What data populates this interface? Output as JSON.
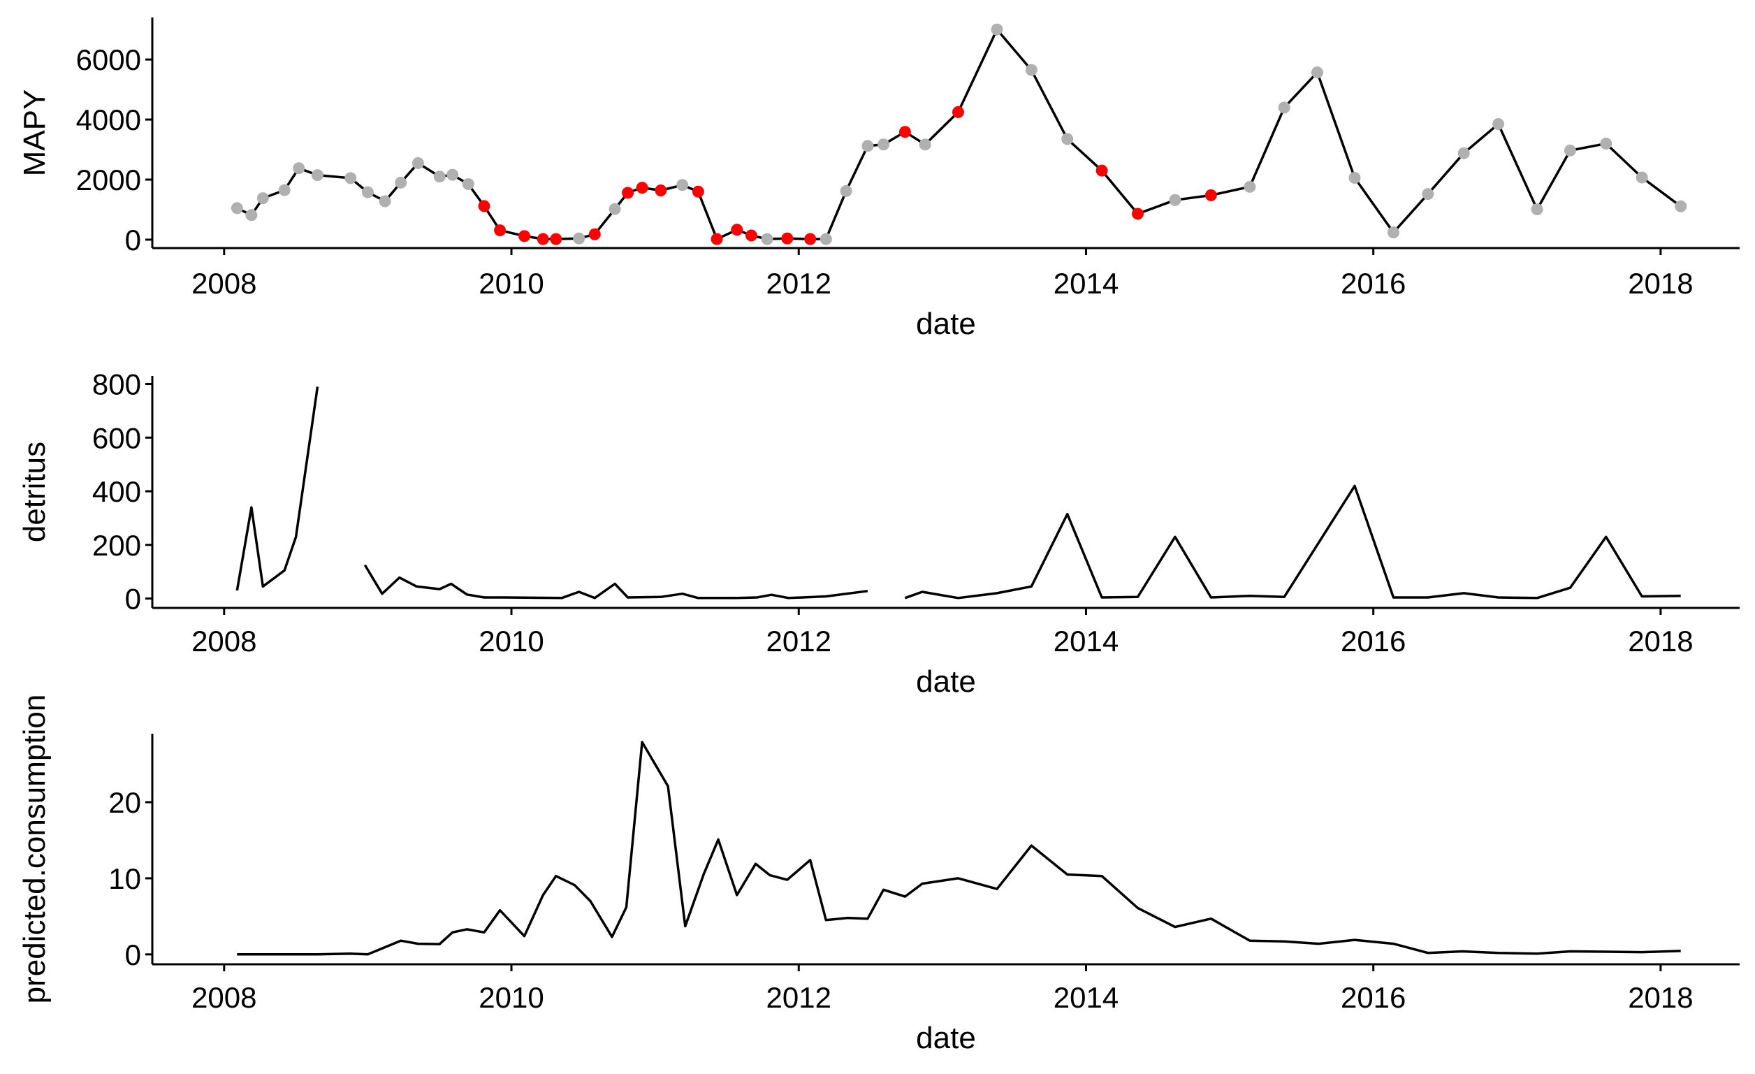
{
  "chart_data": [
    {
      "type": "line",
      "xlabel": "date",
      "ylabel": "MAPY",
      "xlim": [
        2007.5,
        2018.55
      ],
      "ylim": [
        -280,
        7400
      ],
      "xticks": [
        2008,
        2010,
        2012,
        2014,
        2016,
        2018
      ],
      "xtick_labels": [
        "2008",
        "2010",
        "2012",
        "2014",
        "2016",
        "2018"
      ],
      "yticks": [
        0,
        2000,
        4000,
        6000
      ],
      "ytick_labels": [
        "0",
        "2000",
        "4000",
        "6000"
      ],
      "grid": false,
      "legend": "none",
      "point_colors": {
        "grey": "#b0b0b0",
        "red": "#ff0000"
      },
      "line_color": "#000000",
      "points": [
        {
          "x": 2008.09,
          "y": 1050,
          "c": "grey"
        },
        {
          "x": 2008.19,
          "y": 820,
          "c": "grey"
        },
        {
          "x": 2008.27,
          "y": 1380,
          "c": "grey"
        },
        {
          "x": 2008.42,
          "y": 1650,
          "c": "grey"
        },
        {
          "x": 2008.52,
          "y": 2380,
          "c": "grey"
        },
        {
          "x": 2008.65,
          "y": 2150,
          "c": "grey"
        },
        {
          "x": 2008.88,
          "y": 2050,
          "c": "grey"
        },
        {
          "x": 2009.0,
          "y": 1580,
          "c": "grey"
        },
        {
          "x": 2009.12,
          "y": 1280,
          "c": "grey"
        },
        {
          "x": 2009.23,
          "y": 1900,
          "c": "grey"
        },
        {
          "x": 2009.35,
          "y": 2550,
          "c": "grey"
        },
        {
          "x": 2009.5,
          "y": 2100,
          "c": "grey"
        },
        {
          "x": 2009.59,
          "y": 2160,
          "c": "grey"
        },
        {
          "x": 2009.7,
          "y": 1850,
          "c": "grey"
        },
        {
          "x": 2009.81,
          "y": 1120,
          "c": "red"
        },
        {
          "x": 2009.92,
          "y": 310,
          "c": "red"
        },
        {
          "x": 2010.09,
          "y": 120,
          "c": "red"
        },
        {
          "x": 2010.22,
          "y": 20,
          "c": "red"
        },
        {
          "x": 2010.31,
          "y": 20,
          "c": "red"
        },
        {
          "x": 2010.47,
          "y": 40,
          "c": "grey"
        },
        {
          "x": 2010.58,
          "y": 180,
          "c": "red"
        },
        {
          "x": 2010.72,
          "y": 1020,
          "c": "grey"
        },
        {
          "x": 2010.81,
          "y": 1560,
          "c": "red"
        },
        {
          "x": 2010.91,
          "y": 1730,
          "c": "red"
        },
        {
          "x": 2011.04,
          "y": 1640,
          "c": "red"
        },
        {
          "x": 2011.19,
          "y": 1820,
          "c": "grey"
        },
        {
          "x": 2011.3,
          "y": 1600,
          "c": "red"
        },
        {
          "x": 2011.43,
          "y": 20,
          "c": "red"
        },
        {
          "x": 2011.57,
          "y": 330,
          "c": "red"
        },
        {
          "x": 2011.67,
          "y": 140,
          "c": "red"
        },
        {
          "x": 2011.78,
          "y": 20,
          "c": "grey"
        },
        {
          "x": 2011.92,
          "y": 40,
          "c": "red"
        },
        {
          "x": 2012.08,
          "y": 20,
          "c": "red"
        },
        {
          "x": 2012.19,
          "y": 20,
          "c": "grey"
        },
        {
          "x": 2012.33,
          "y": 1620,
          "c": "grey"
        },
        {
          "x": 2012.48,
          "y": 3120,
          "c": "grey"
        },
        {
          "x": 2012.59,
          "y": 3170,
          "c": "grey"
        },
        {
          "x": 2012.74,
          "y": 3590,
          "c": "red"
        },
        {
          "x": 2012.88,
          "y": 3170,
          "c": "grey"
        },
        {
          "x": 2013.11,
          "y": 4250,
          "c": "red"
        },
        {
          "x": 2013.38,
          "y": 7000,
          "c": "grey"
        },
        {
          "x": 2013.62,
          "y": 5650,
          "c": "grey"
        },
        {
          "x": 2013.87,
          "y": 3350,
          "c": "grey"
        },
        {
          "x": 2014.11,
          "y": 2300,
          "c": "red"
        },
        {
          "x": 2014.36,
          "y": 860,
          "c": "red"
        },
        {
          "x": 2014.62,
          "y": 1320,
          "c": "grey"
        },
        {
          "x": 2014.87,
          "y": 1480,
          "c": "red"
        },
        {
          "x": 2015.14,
          "y": 1760,
          "c": "grey"
        },
        {
          "x": 2015.38,
          "y": 4400,
          "c": "grey"
        },
        {
          "x": 2015.61,
          "y": 5570,
          "c": "grey"
        },
        {
          "x": 2015.87,
          "y": 2060,
          "c": "grey"
        },
        {
          "x": 2016.14,
          "y": 240,
          "c": "grey"
        },
        {
          "x": 2016.38,
          "y": 1520,
          "c": "grey"
        },
        {
          "x": 2016.63,
          "y": 2880,
          "c": "grey"
        },
        {
          "x": 2016.87,
          "y": 3850,
          "c": "grey"
        },
        {
          "x": 2017.14,
          "y": 1010,
          "c": "grey"
        },
        {
          "x": 2017.37,
          "y": 2970,
          "c": "grey"
        },
        {
          "x": 2017.62,
          "y": 3200,
          "c": "grey"
        },
        {
          "x": 2017.87,
          "y": 2070,
          "c": "grey"
        },
        {
          "x": 2018.14,
          "y": 1110,
          "c": "grey"
        }
      ]
    },
    {
      "type": "line",
      "xlabel": "date",
      "ylabel": "detritus",
      "xlim": [
        2007.5,
        2018.55
      ],
      "ylim": [
        -35,
        830
      ],
      "xticks": [
        2008,
        2010,
        2012,
        2014,
        2016,
        2018
      ],
      "xtick_labels": [
        "2008",
        "2010",
        "2012",
        "2014",
        "2016",
        "2018"
      ],
      "yticks": [
        0,
        200,
        400,
        600,
        800
      ],
      "ytick_labels": [
        "0",
        "200",
        "400",
        "600",
        "800"
      ],
      "grid": false,
      "legend": "none",
      "line_color": "#000000",
      "segments": [
        [
          [
            2008.09,
            30
          ],
          [
            2008.19,
            340
          ],
          [
            2008.27,
            45
          ],
          [
            2008.42,
            105
          ],
          [
            2008.5,
            230
          ],
          [
            2008.65,
            790
          ]
        ],
        [
          [
            2008.98,
            125
          ],
          [
            2009.1,
            18
          ],
          [
            2009.22,
            78
          ],
          [
            2009.34,
            45
          ],
          [
            2009.5,
            35
          ],
          [
            2009.58,
            55
          ],
          [
            2009.69,
            15
          ],
          [
            2009.81,
            4
          ],
          [
            2009.95,
            4
          ],
          [
            2010.35,
            2
          ],
          [
            2010.47,
            25
          ],
          [
            2010.58,
            2
          ],
          [
            2010.72,
            55
          ],
          [
            2010.81,
            4
          ],
          [
            2011.04,
            6
          ],
          [
            2011.19,
            18
          ],
          [
            2011.3,
            2
          ],
          [
            2011.57,
            2
          ],
          [
            2011.71,
            4
          ],
          [
            2011.81,
            14
          ],
          [
            2011.93,
            2
          ],
          [
            2012.19,
            8
          ],
          [
            2012.48,
            28
          ]
        ],
        [
          [
            2012.74,
            2
          ],
          [
            2012.86,
            25
          ],
          [
            2013.11,
            2
          ],
          [
            2013.38,
            20
          ],
          [
            2013.62,
            45
          ],
          [
            2013.87,
            315
          ],
          [
            2014.11,
            4
          ],
          [
            2014.36,
            6
          ],
          [
            2014.62,
            230
          ],
          [
            2014.87,
            4
          ],
          [
            2015.14,
            10
          ],
          [
            2015.38,
            6
          ],
          [
            2015.87,
            420
          ],
          [
            2016.14,
            4
          ],
          [
            2016.38,
            4
          ],
          [
            2016.63,
            20
          ],
          [
            2016.87,
            4
          ],
          [
            2017.14,
            2
          ],
          [
            2017.37,
            40
          ],
          [
            2017.62,
            230
          ],
          [
            2017.87,
            8
          ],
          [
            2018.14,
            10
          ]
        ]
      ]
    },
    {
      "type": "line",
      "xlabel": "date",
      "ylabel": "predicted.consumption",
      "xlim": [
        2007.5,
        2018.55
      ],
      "ylim": [
        -1.3,
        29
      ],
      "xticks": [
        2008,
        2010,
        2012,
        2014,
        2016,
        2018
      ],
      "xtick_labels": [
        "2008",
        "2010",
        "2012",
        "2014",
        "2016",
        "2018"
      ],
      "yticks": [
        0,
        10,
        20
      ],
      "ytick_labels": [
        "0",
        "10",
        "20"
      ],
      "grid": false,
      "legend": "none",
      "line_color": "#000000",
      "segments": [
        [
          [
            2008.09,
            0.0
          ],
          [
            2008.65,
            0.0
          ],
          [
            2008.88,
            0.1
          ],
          [
            2009.0,
            0.0
          ],
          [
            2009.23,
            1.8
          ],
          [
            2009.35,
            1.4
          ],
          [
            2009.5,
            1.35
          ],
          [
            2009.59,
            2.9
          ],
          [
            2009.69,
            3.3
          ],
          [
            2009.81,
            2.9
          ],
          [
            2009.92,
            5.8
          ],
          [
            2010.09,
            2.4
          ],
          [
            2010.22,
            7.8
          ],
          [
            2010.31,
            10.3
          ],
          [
            2010.44,
            9.1
          ],
          [
            2010.55,
            7.0
          ],
          [
            2010.7,
            2.3
          ],
          [
            2010.8,
            6.2
          ],
          [
            2010.91,
            27.9
          ],
          [
            2011.09,
            22.1
          ],
          [
            2011.21,
            3.7
          ],
          [
            2011.34,
            10.6
          ],
          [
            2011.44,
            15.1
          ],
          [
            2011.57,
            7.8
          ],
          [
            2011.7,
            11.9
          ],
          [
            2011.8,
            10.4
          ],
          [
            2011.92,
            9.8
          ],
          [
            2012.08,
            12.4
          ],
          [
            2012.19,
            4.5
          ],
          [
            2012.34,
            4.8
          ],
          [
            2012.48,
            4.7
          ],
          [
            2012.59,
            8.5
          ],
          [
            2012.74,
            7.6
          ],
          [
            2012.86,
            9.3
          ],
          [
            2013.11,
            10.0
          ],
          [
            2013.38,
            8.6
          ],
          [
            2013.62,
            14.3
          ],
          [
            2013.87,
            10.5
          ],
          [
            2014.11,
            10.3
          ],
          [
            2014.36,
            6.1
          ],
          [
            2014.62,
            3.6
          ],
          [
            2014.87,
            4.7
          ],
          [
            2015.14,
            1.8
          ],
          [
            2015.38,
            1.7
          ],
          [
            2015.62,
            1.4
          ],
          [
            2015.87,
            1.9
          ],
          [
            2016.14,
            1.4
          ],
          [
            2016.38,
            0.2
          ],
          [
            2016.62,
            0.4
          ],
          [
            2016.87,
            0.2
          ],
          [
            2017.14,
            0.1
          ],
          [
            2017.37,
            0.4
          ],
          [
            2017.62,
            0.35
          ],
          [
            2017.87,
            0.3
          ],
          [
            2018.14,
            0.45
          ]
        ]
      ]
    }
  ]
}
